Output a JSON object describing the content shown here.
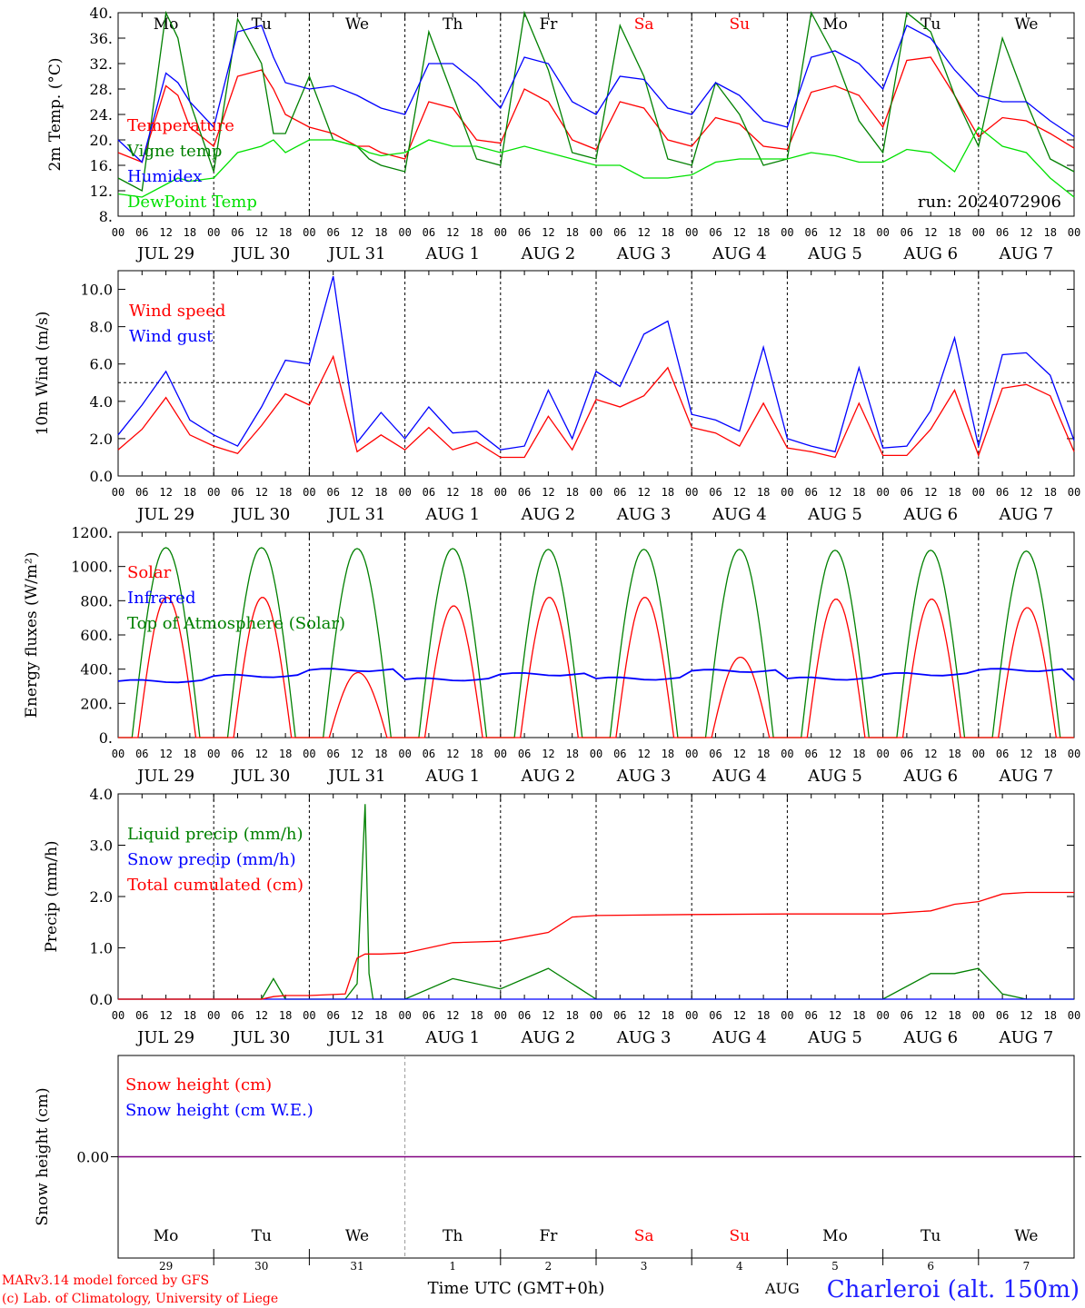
{
  "chart_data": [
    {
      "type": "line",
      "ylabel": "2m Temp. (°C)",
      "ylim": [
        8,
        40
      ],
      "yticks": [
        "8.",
        "12.",
        "16.",
        "20.",
        "24.",
        "28.",
        "32.",
        "36.",
        "40."
      ],
      "annotation": "run: 2024072906",
      "x": [
        0,
        6,
        12,
        15,
        18,
        24,
        30,
        36,
        39,
        42,
        48,
        54,
        60,
        63,
        66,
        72,
        78,
        84,
        90,
        96,
        102,
        108,
        114,
        120,
        126,
        132,
        138,
        144,
        150,
        156,
        162,
        168,
        174,
        180,
        186,
        192,
        198,
        204,
        210,
        216,
        222,
        228,
        234,
        240
      ],
      "series": [
        {
          "name": "Temperature",
          "color": "#ff0000",
          "values": [
            18,
            16.5,
            28.5,
            27,
            22,
            19,
            30,
            31,
            28,
            24,
            22,
            21,
            19,
            19,
            18,
            17,
            26,
            25,
            20,
            19.5,
            28,
            26,
            20,
            18.5,
            26,
            25,
            20,
            19,
            23.5,
            22.5,
            19,
            18.5,
            27.5,
            28.5,
            27,
            22,
            32.5,
            33,
            27,
            20.5,
            23.5,
            23,
            21,
            18.7
          ]
        },
        {
          "name": "Vigne temp",
          "color": "#008000",
          "values": [
            14,
            12,
            40,
            36,
            26,
            15,
            39,
            32,
            21,
            21,
            30,
            20,
            19,
            17,
            16,
            15,
            37,
            27,
            17,
            16,
            40,
            31,
            18,
            17,
            38,
            30,
            17,
            16,
            29,
            24,
            16,
            17,
            40,
            33,
            23,
            18,
            40,
            37,
            27,
            19,
            36,
            26,
            17,
            15
          ]
        },
        {
          "name": "Humidex",
          "color": "#0000ff",
          "values": [
            20,
            16.5,
            30.5,
            29,
            26,
            22,
            37,
            38,
            33,
            29,
            28,
            28.5,
            27,
            26,
            25,
            24,
            32,
            32,
            29,
            25,
            33,
            32,
            26,
            24,
            30,
            29.5,
            25,
            24,
            29,
            27,
            23,
            22,
            33,
            34,
            32,
            28,
            38,
            36,
            31,
            27,
            26,
            26,
            23,
            20.5
          ]
        },
        {
          "name": "DewPoint Temp",
          "color": "#00e000",
          "values": [
            11.5,
            11,
            13,
            14,
            13.5,
            14,
            18,
            19,
            20,
            18,
            20,
            20,
            19,
            18,
            17.5,
            18,
            20,
            19,
            19,
            18,
            19,
            18,
            17,
            16,
            16,
            14,
            14,
            14.5,
            16.5,
            17,
            17,
            17,
            18,
            17.5,
            16.5,
            16.5,
            18.5,
            18,
            15,
            22,
            19,
            18,
            14,
            11
          ]
        }
      ]
    },
    {
      "type": "line",
      "ylabel": "10m Wind (m/s)",
      "ylim": [
        0,
        11
      ],
      "yticks": [
        "0.0",
        "2.0",
        "4.0",
        "6.0",
        "8.0",
        "10.0"
      ],
      "reference_line": 5,
      "x": [
        0,
        6,
        12,
        18,
        24,
        30,
        36,
        42,
        48,
        54,
        60,
        66,
        72,
        78,
        84,
        90,
        96,
        102,
        108,
        114,
        120,
        126,
        132,
        138,
        144,
        150,
        156,
        162,
        168,
        174,
        180,
        186,
        192,
        198,
        204,
        210,
        216,
        222,
        228,
        234,
        240
      ],
      "series": [
        {
          "name": "Wind speed",
          "color": "#ff0000",
          "values": [
            1.4,
            2.5,
            4.2,
            2.2,
            1.6,
            1.2,
            2.7,
            4.4,
            3.8,
            6.4,
            1.3,
            2.2,
            1.4,
            2.6,
            1.4,
            1.8,
            1.0,
            1.0,
            3.2,
            1.4,
            4.1,
            3.7,
            4.3,
            5.8,
            2.6,
            2.3,
            1.6,
            3.9,
            1.5,
            1.3,
            1.0,
            3.9,
            1.1,
            1.1,
            2.5,
            4.6,
            1.1,
            4.7,
            4.9,
            4.3,
            1.3
          ]
        },
        {
          "name": "Wind gust",
          "color": "#0000ff",
          "values": [
            2.2,
            3.8,
            5.6,
            3.0,
            2.2,
            1.6,
            3.7,
            6.2,
            6.0,
            10.7,
            1.8,
            3.4,
            2.0,
            3.7,
            2.3,
            2.4,
            1.4,
            1.6,
            4.6,
            2.0,
            5.6,
            4.8,
            7.6,
            8.3,
            3.3,
            3.0,
            2.4,
            6.9,
            2.0,
            1.6,
            1.3,
            5.8,
            1.5,
            1.6,
            3.5,
            7.4,
            1.6,
            6.5,
            6.6,
            5.4,
            1.9
          ]
        }
      ]
    },
    {
      "type": "line",
      "ylabel": "Energy fluxes (W/m²)",
      "ylim": [
        0,
        1200
      ],
      "yticks": [
        "0.",
        "200.",
        "400.",
        "600.",
        "800.",
        "1000.",
        "1200."
      ],
      "x": [
        0,
        3,
        6,
        9,
        12,
        15,
        18,
        21,
        24
      ],
      "series": [
        {
          "name": "Solar",
          "color": "#ff0000",
          "daily_peaks": [
            820,
            820,
            380,
            770,
            820,
            820,
            470,
            810,
            810,
            760
          ]
        },
        {
          "name": "Infrared",
          "color": "#0000ff",
          "daily_means": [
            330,
            360,
            395,
            340,
            370,
            345,
            390,
            345,
            370,
            395
          ]
        },
        {
          "name": "Top of Atmosphere (Solar)",
          "color": "#008000",
          "daily_peaks": [
            1110,
            1110,
            1105,
            1105,
            1100,
            1100,
            1100,
            1095,
            1095,
            1090
          ]
        }
      ]
    },
    {
      "type": "line",
      "ylabel": "Precip (mm/h)",
      "ylim": [
        0,
        4
      ],
      "yticks": [
        "0.0",
        "1.0",
        "2.0",
        "3.0",
        "4.0"
      ],
      "x": [
        0,
        24,
        36,
        39,
        42,
        48,
        57,
        60,
        62,
        63,
        64,
        66,
        72,
        84,
        96,
        108,
        114,
        120,
        144,
        168,
        192,
        204,
        210,
        216,
        222,
        228,
        240
      ],
      "series": [
        {
          "name": "Liquid precip (mm/h)",
          "color": "#008000",
          "values": [
            0,
            0,
            0,
            0.4,
            0,
            0,
            0,
            0.3,
            3.8,
            0.5,
            0,
            0,
            0,
            0.4,
            0.2,
            0.6,
            0.3,
            0,
            0,
            0,
            0,
            0.5,
            0.5,
            0.6,
            0.1,
            0,
            0
          ]
        },
        {
          "name": "Snow precip (mm/h)",
          "color": "#0000ff",
          "values": [
            0,
            0,
            0,
            0,
            0,
            0,
            0,
            0,
            0,
            0,
            0,
            0,
            0,
            0,
            0,
            0,
            0,
            0,
            0,
            0,
            0,
            0,
            0,
            0,
            0,
            0,
            0
          ]
        },
        {
          "name": "Total cumulated (cm)",
          "color": "#ff0000",
          "values": [
            0,
            0,
            0,
            0.05,
            0.07,
            0.07,
            0.1,
            0.8,
            0.88,
            0.88,
            0.88,
            0.88,
            0.9,
            1.1,
            1.13,
            1.3,
            1.6,
            1.63,
            1.65,
            1.66,
            1.66,
            1.72,
            1.85,
            1.9,
            2.05,
            2.08,
            2.08
          ]
        }
      ]
    },
    {
      "type": "line",
      "ylabel": "Snow height (cm)",
      "ylim": [
        -1,
        1
      ],
      "yticks": [
        "0.00"
      ],
      "series": [
        {
          "name": "Snow height (cm)",
          "color": "#ff0000",
          "values": [
            0,
            0
          ]
        },
        {
          "name": "Snow height (cm W.E.)",
          "color": "#0000ff",
          "values": [
            0,
            0
          ]
        }
      ]
    }
  ],
  "axis": {
    "hour_ticks": [
      "00",
      "06",
      "12",
      "18"
    ],
    "final_hour_tick": "00",
    "days": [
      {
        "date": "JUL 29",
        "weekday": "Mo",
        "daynum": "29",
        "weekend": false
      },
      {
        "date": "JUL 30",
        "weekday": "Tu",
        "daynum": "30",
        "weekend": false
      },
      {
        "date": "JUL 31",
        "weekday": "We",
        "daynum": "31",
        "weekend": false
      },
      {
        "date": "AUG  1",
        "weekday": "Th",
        "daynum": "1",
        "weekend": false
      },
      {
        "date": "AUG  2",
        "weekday": "Fr",
        "daynum": "2",
        "weekend": false
      },
      {
        "date": "AUG  3",
        "weekday": "Sa",
        "daynum": "3",
        "weekend": true
      },
      {
        "date": "AUG  4",
        "weekday": "Su",
        "daynum": "4",
        "weekend": true
      },
      {
        "date": "AUG  5",
        "weekday": "Mo",
        "daynum": "5",
        "weekend": false
      },
      {
        "date": "AUG  6",
        "weekday": "Tu",
        "daynum": "6",
        "weekend": false
      },
      {
        "date": "AUG  7",
        "weekday": "We",
        "daynum": "7",
        "weekend": false
      }
    ],
    "xlabel": "Time UTC (GMT+0h)",
    "month_label": "AUG"
  },
  "footer": {
    "credit_line1": "MARv3.14 model forced by GFS",
    "credit_line2": "(c) Lab. of Climatology, University of Liege",
    "station": "Charleroi (alt. 150m)"
  },
  "colors": {
    "weekend": "#ff0000",
    "text": "#000000",
    "station": "#2020ff"
  }
}
